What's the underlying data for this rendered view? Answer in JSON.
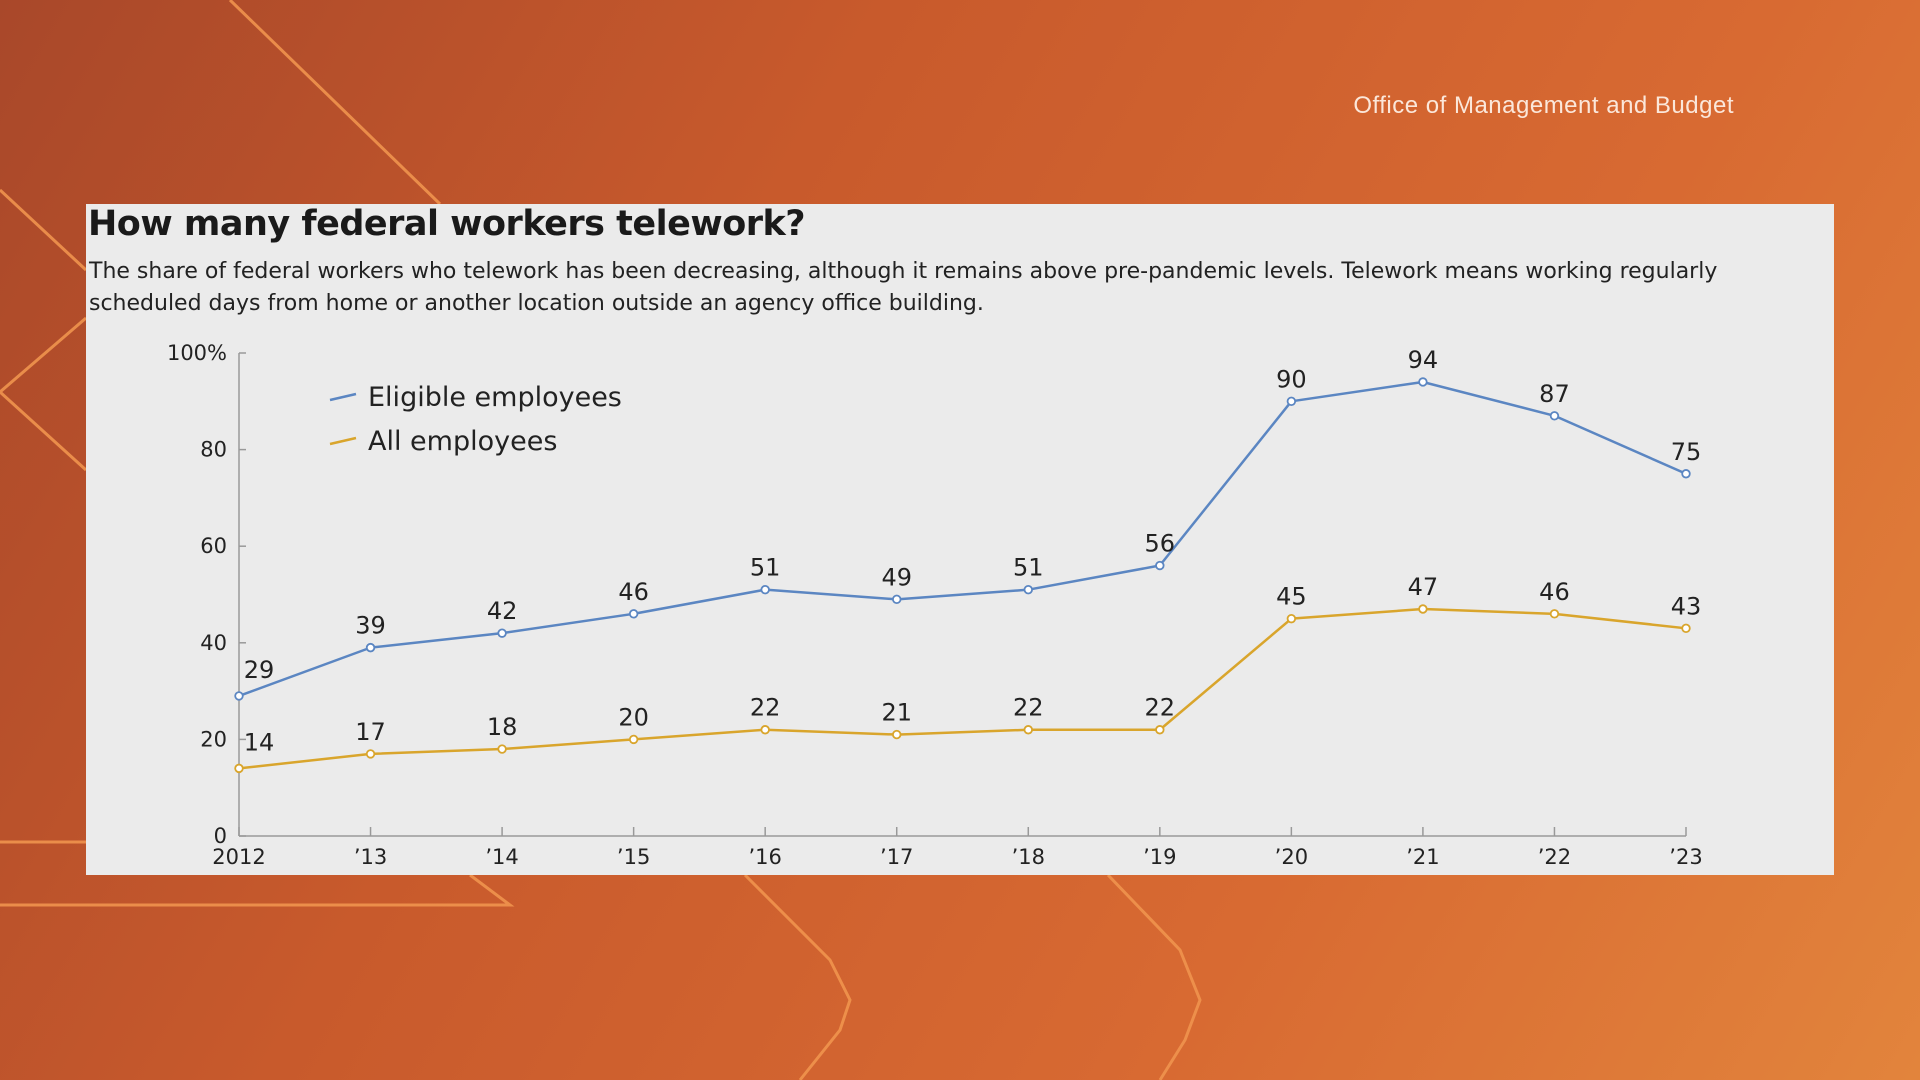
{
  "source_label": "Office of Management and Budget",
  "colors": {
    "eligible": "#5b86c2",
    "all": "#d9a52c",
    "axis": "#999999",
    "panel": "#ebebeb"
  },
  "chart_data": {
    "type": "line",
    "title": "How many federal workers telework?",
    "subtitle": "The share of federal workers who telework has been decreasing, although it remains above pre-pandemic levels. Telework means working regularly scheduled days from home or another location outside an agency office building.",
    "x": [
      "2012",
      "’13",
      "’14",
      "’15",
      "’16",
      "’17",
      "’18",
      "’19",
      "’20",
      "’21",
      "’22",
      "’23"
    ],
    "y_ticks": [
      "0",
      "20",
      "40",
      "60",
      "80",
      "100%"
    ],
    "ylim": [
      0,
      100
    ],
    "legend_position": "top-left",
    "series": [
      {
        "name": "Eligible employees",
        "color": "#5b86c2",
        "values": [
          29,
          39,
          42,
          46,
          51,
          49,
          51,
          56,
          90,
          94,
          87,
          75
        ]
      },
      {
        "name": "All employees",
        "color": "#d9a52c",
        "values": [
          14,
          17,
          18,
          20,
          22,
          21,
          22,
          22,
          45,
          47,
          46,
          43
        ]
      }
    ]
  }
}
